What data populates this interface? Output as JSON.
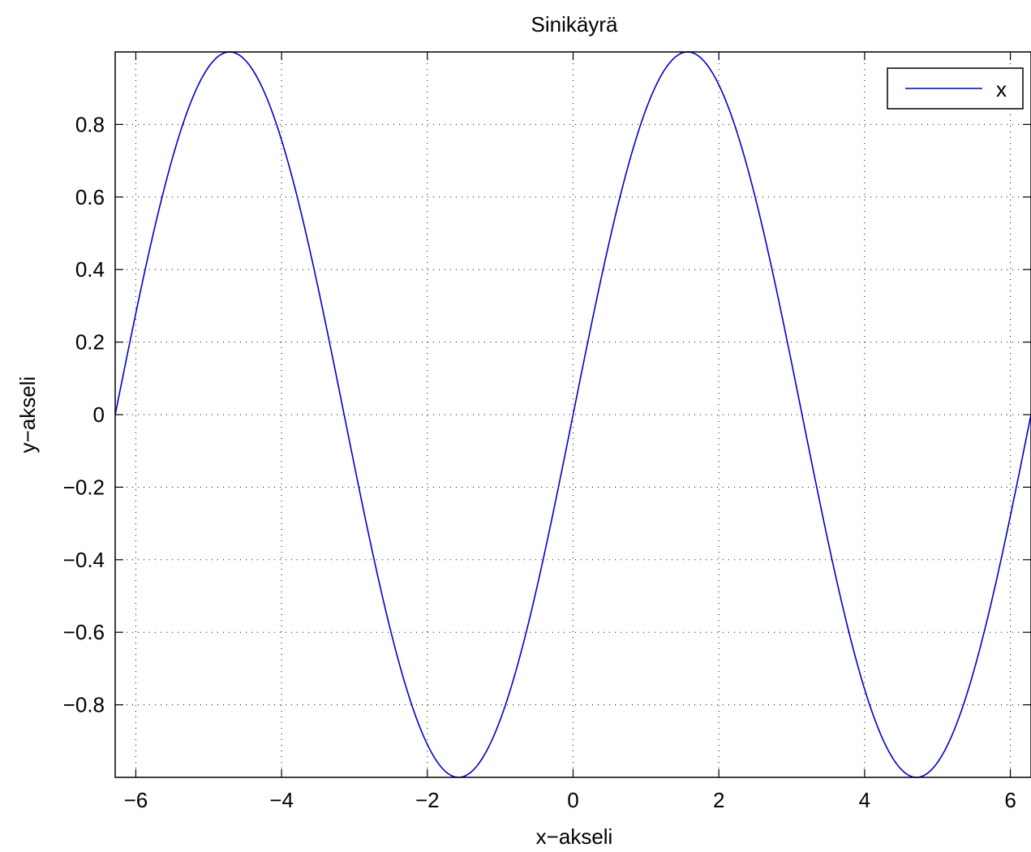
{
  "chart_data": {
    "type": "line",
    "title": "Sinikäyrä",
    "xlabel": "x−akseli",
    "ylabel": "y−akseli",
    "xlim": [
      -6.2832,
      6.2832
    ],
    "ylim": [
      -1,
      1
    ],
    "grid": true,
    "legend_position": "top-right",
    "x_ticks": [
      -6,
      -4,
      -2,
      0,
      2,
      4,
      6
    ],
    "x_tick_labels": [
      "−6",
      "−4",
      "−2",
      "0",
      "2",
      "4",
      "6"
    ],
    "y_ticks": [
      -0.8,
      -0.6,
      -0.4,
      -0.2,
      0,
      0.2,
      0.4,
      0.6,
      0.8
    ],
    "y_tick_labels": [
      "−0.8",
      "−0.6",
      "−0.4",
      "−0.2",
      "0",
      "0.2",
      "0.4",
      "0.6",
      "0.8"
    ],
    "series": [
      {
        "name": "x",
        "color": "#0000cc",
        "function": "sin",
        "x_range": [
          -6.2832,
          6.2832
        ]
      }
    ]
  }
}
